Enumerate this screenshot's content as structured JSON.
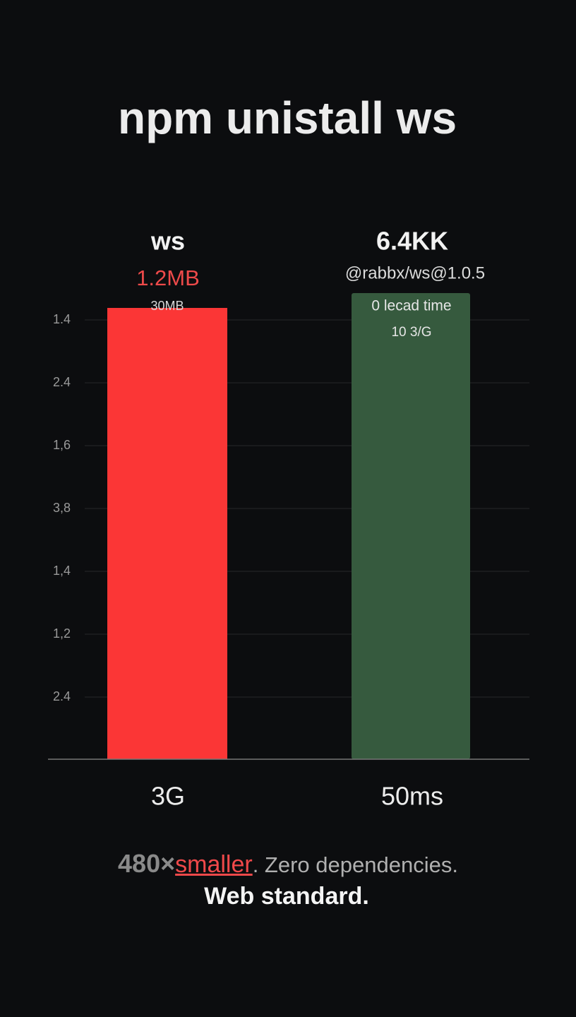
{
  "title": "npm unistall ws",
  "y_axis_labels": [
    "1.4",
    "2.4",
    "1,6",
    "3,8",
    "1,4",
    "1,2",
    "2.4"
  ],
  "bars": [
    {
      "name": "ws",
      "size": "1.2MB",
      "note": "30MB",
      "category": "3G"
    },
    {
      "name": "6.4KK",
      "size": "@rabbx/ws@1.0.5",
      "note": "0 lecad time",
      "note2": "10 3/G",
      "category": "50ms"
    }
  ],
  "footer": {
    "ratio": "480×",
    "highlight": "smaller",
    "rest": ". Zero dependencies.",
    "line2": "Web standard."
  }
}
